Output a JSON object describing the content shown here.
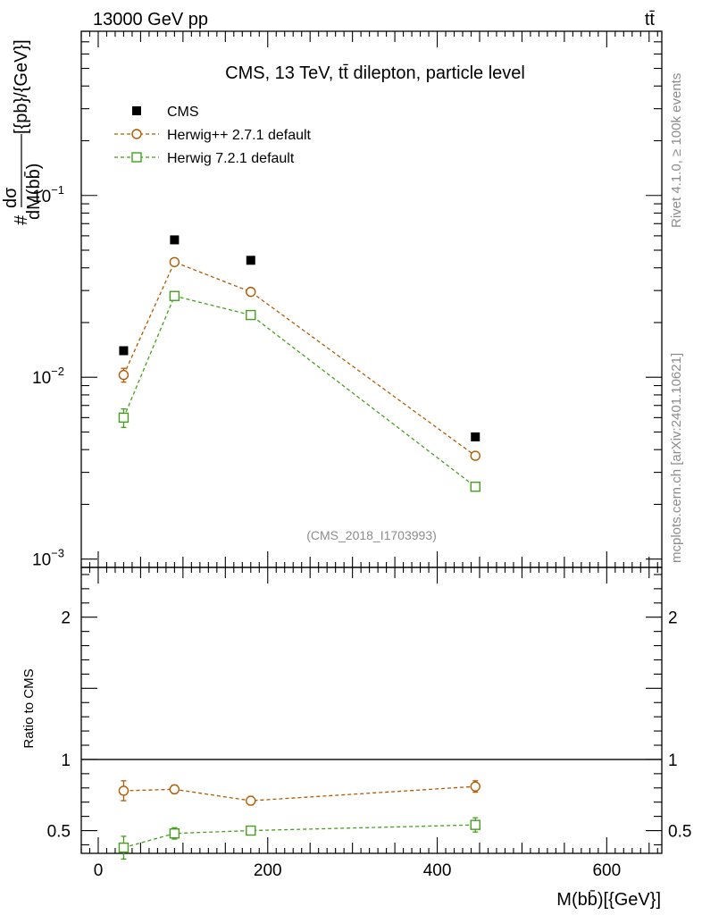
{
  "header": {
    "left": "13000 GeV pp",
    "right": "tt̄"
  },
  "side_labels": {
    "rivet": "Rivet 4.1.0, ≥ 100k events",
    "mcplots": "mcplots.cern.ch [arXiv:2401.10621]"
  },
  "chart_data": [
    {
      "type": "scatter",
      "title": "CMS, 13 TeV, tt̄ dilepton, particle level",
      "watermark": "(CMS_2018_I1703993)",
      "ylabel": "# dσ/dM(bb̄) [{pb}/{GeV}]",
      "ylabel_parts": {
        "hash": "#",
        "num": "dσ",
        "den": "dM(bb̄)",
        "unit": "[{pb}/{GeV}]"
      },
      "yscale": "log",
      "ylim": [
        0.0009,
        0.8
      ],
      "xlim": [
        -20,
        665
      ],
      "y_ticks": [
        {
          "value": 0.1,
          "base": "10",
          "exp": "−1"
        },
        {
          "value": 0.01,
          "base": "10",
          "exp": "−2"
        },
        {
          "value": 0.001,
          "base": "10",
          "exp": "−3"
        }
      ],
      "legend_position": "top-left",
      "x": [
        30,
        90,
        180,
        445
      ],
      "series": [
        {
          "name": "CMS",
          "color": "#000000",
          "marker": "filled-square",
          "line": false,
          "values": [
            0.014,
            0.057,
            0.044,
            0.0047
          ]
        },
        {
          "name": "Herwig++ 2.7.1 default",
          "color": "#b35900",
          "marker": "open-circle",
          "line": true,
          "values": [
            0.0103,
            0.043,
            0.0295,
            0.0037
          ],
          "err_low": [
            0.0009,
            0.0012,
            0.0008,
            0.00015
          ],
          "err_high": [
            0.0009,
            0.0012,
            0.0008,
            0.00015
          ]
        },
        {
          "name": "Herwig 7.2.1 default",
          "color": "#43a01c",
          "marker": "open-square",
          "line": true,
          "values": [
            0.006,
            0.028,
            0.022,
            0.0025
          ],
          "err_low": [
            0.0007,
            0.0008,
            0.0006,
            0.0001
          ],
          "err_high": [
            0.0007,
            0.0008,
            0.0006,
            0.0001
          ]
        }
      ]
    },
    {
      "type": "scatter",
      "ylabel": "Ratio to CMS",
      "xlabel": "M(bb̄)[{GeV}]",
      "yscale": "linear",
      "ylim": [
        0.34,
        2.35
      ],
      "xlim": [
        -20,
        665
      ],
      "reference_line": 1,
      "y_ticks": [
        {
          "value": 0.5,
          "label": "0.5"
        },
        {
          "value": 1,
          "label": "1"
        },
        {
          "value": 2,
          "label": "2"
        }
      ],
      "x_ticks": [
        {
          "value": 0,
          "label": "0"
        },
        {
          "value": 200,
          "label": "200"
        },
        {
          "value": 400,
          "label": "400"
        },
        {
          "value": 600,
          "label": "600"
        }
      ],
      "x": [
        30,
        90,
        180,
        445
      ],
      "series": [
        {
          "name": "Herwig++ 2.7.1 default",
          "color": "#b35900",
          "marker": "open-circle",
          "values": [
            0.78,
            0.79,
            0.71,
            0.81
          ],
          "err_low": [
            0.07,
            0.03,
            0.03,
            0.04
          ],
          "err_high": [
            0.07,
            0.03,
            0.03,
            0.04
          ]
        },
        {
          "name": "Herwig 7.2.1 default",
          "color": "#43a01c",
          "marker": "open-square",
          "values": [
            0.38,
            0.48,
            0.5,
            0.54
          ],
          "err_low": [
            0.08,
            0.04,
            0.03,
            0.05
          ],
          "err_high": [
            0.08,
            0.04,
            0.03,
            0.05
          ]
        }
      ]
    }
  ]
}
